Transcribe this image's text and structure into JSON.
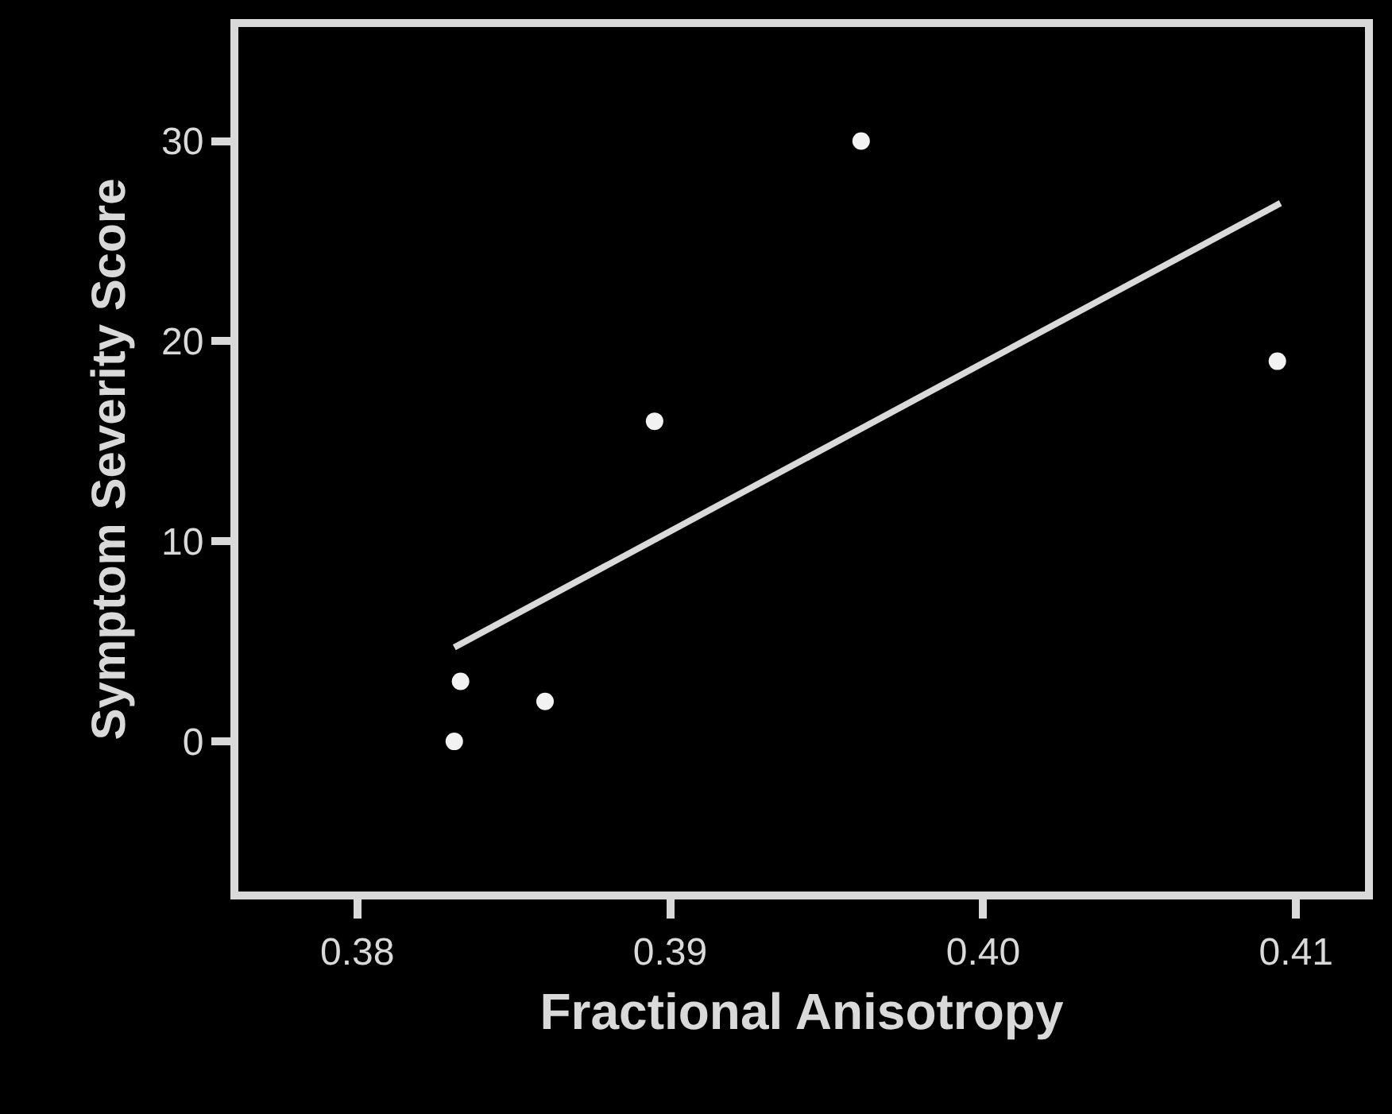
{
  "chart_data": {
    "type": "scatter",
    "xlabel": "Fractional Anisotropy",
    "ylabel": "Symptom Severity Score",
    "series": [
      {
        "color": "#f2f2f2",
        "x": [
          0.3831,
          0.3833,
          0.386,
          0.3895,
          0.3961,
          0.4094
        ],
        "values": [
          0,
          3,
          2,
          16,
          30,
          19
        ]
      },
      {
        "type": "line",
        "marker": "none",
        "color": "#d9d9d9",
        "x": [
          0.3831,
          0.4095
        ],
        "values": [
          4.7,
          26.9
        ]
      }
    ],
    "xlim": [
      0.3762,
      0.4122
    ],
    "xticks": [
      {
        "value": 0.38,
        "label": "0.38"
      },
      {
        "value": 0.39,
        "label": "0.39"
      },
      {
        "value": 0.4,
        "label": "0.40"
      },
      {
        "value": 0.41,
        "label": "0.41"
      }
    ],
    "ylim": [
      -7.5,
      35.7
    ],
    "yticks": [
      0,
      10,
      20,
      30
    ],
    "grid": false,
    "marker": "circle",
    "line_style": "solid"
  }
}
